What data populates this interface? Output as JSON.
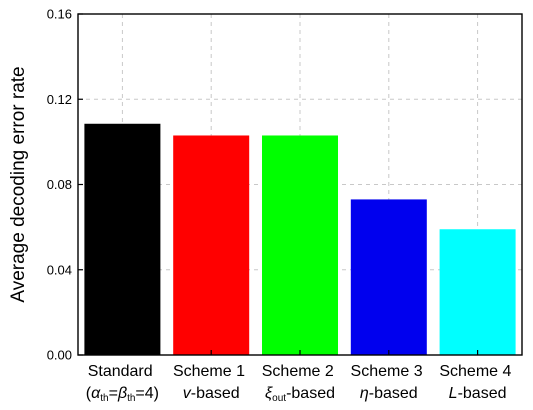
{
  "chart_data": {
    "type": "bar",
    "ylabel": "Average decoding error rate",
    "ylim": [
      0,
      0.16
    ],
    "yticks": [
      "0.00",
      "0.04",
      "0.08",
      "0.12",
      "0.16"
    ],
    "grid": true,
    "categories": [
      "Standard (αth=βth=4)",
      "Scheme 1 v-based",
      "Scheme 2 ξout-based",
      "Scheme 3 η-based",
      "Scheme 4 L-based"
    ],
    "values": [
      0.1085,
      0.103,
      0.103,
      0.073,
      0.059
    ],
    "colors": [
      "#000000",
      "#ff0000",
      "#00ff00",
      "#0000ee",
      "#00ffff"
    ],
    "category_labels": [
      {
        "line1": "Standard",
        "line2": {
          "open": "(",
          "alpha": "α",
          "alpha_sub": "th",
          "eq1": "=",
          "beta": "β",
          "beta_sub": "th",
          "rest": "=4)"
        }
      },
      {
        "line1": "Scheme 1",
        "line2": {
          "var": "v",
          "suffix": "-based"
        }
      },
      {
        "line1": "Scheme 2",
        "line2": {
          "var": "ξ",
          "sub": "out",
          "suffix": "-based"
        }
      },
      {
        "line1": "Scheme 3",
        "line2": {
          "var": "η",
          "suffix": "-based"
        }
      },
      {
        "line1": "Scheme 4",
        "line2": {
          "var": "L",
          "suffix": "-based"
        }
      }
    ]
  }
}
